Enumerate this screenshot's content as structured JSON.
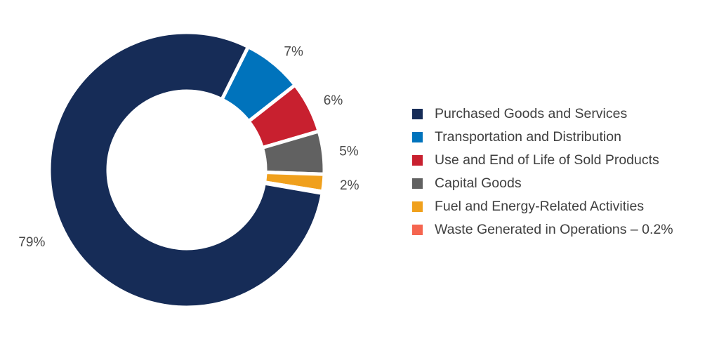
{
  "chart_data": {
    "type": "pie",
    "variant": "donut",
    "legend_position": "right",
    "categories": [
      "Purchased Goods and Services",
      "Transportation and Distribution",
      "Use and End of Life of Sold Products",
      "Capital Goods",
      "Fuel and Energy-Related Activities",
      "Waste Generated in Operations – 0.2%"
    ],
    "values": [
      79,
      7,
      6,
      5,
      2,
      0.2
    ],
    "data_labels": [
      "79%",
      "7%",
      "6%",
      "5%",
      "2%",
      ""
    ],
    "colors": [
      "#162c57",
      "#0073bc",
      "#c8202f",
      "#616161",
      "#f0a01c",
      "#f5654f"
    ]
  },
  "legend": {
    "items": [
      {
        "label": "Purchased Goods and Services",
        "color": "#162c57"
      },
      {
        "label": "Transportation and Distribution",
        "color": "#0073bc"
      },
      {
        "label": "Use and End of Life of Sold Products",
        "color": "#c8202f"
      },
      {
        "label": "Capital Goods",
        "color": "#616161"
      },
      {
        "label": "Fuel and Energy-Related Activities",
        "color": "#f0a01c"
      },
      {
        "label": "Waste Generated in Operations – 0.2%",
        "color": "#f5654f"
      }
    ]
  }
}
